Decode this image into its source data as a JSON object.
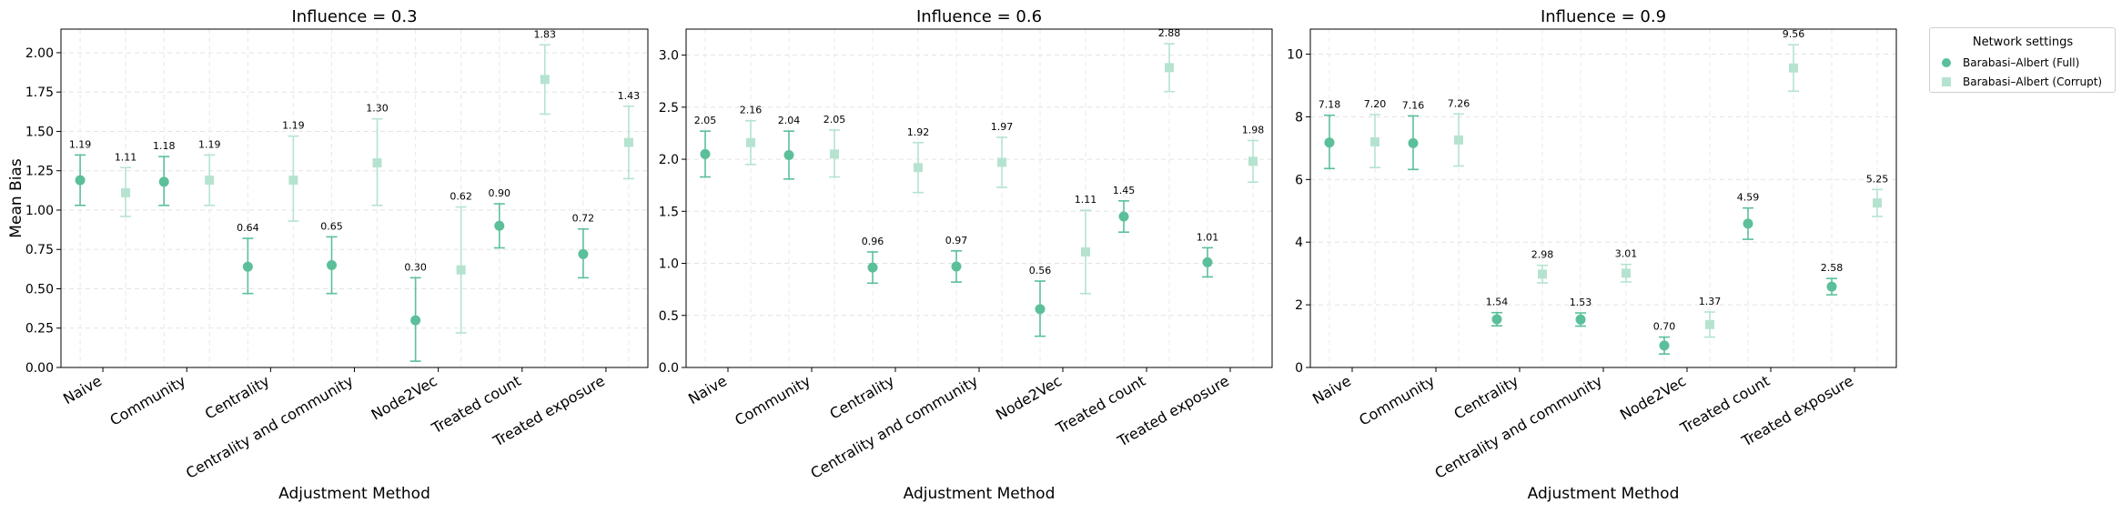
{
  "figure": {
    "shared_ylabel": "Mean Bias",
    "legend": {
      "title": "Network settings",
      "entries": [
        {
          "label": "Barabasi–Albert (Full)",
          "color": "#5bbf9a",
          "marker": "circle"
        },
        {
          "label": "Barabasi–Albert (Corrupt)",
          "color": "#b5e3d0",
          "marker": "square"
        }
      ]
    }
  },
  "chart_data": [
    {
      "type": "scatter",
      "title": "Influence = 0.3",
      "xlabel": "Adjustment Method",
      "ylabel": "Mean Bias",
      "categories": [
        "Naive",
        "Community",
        "Centrality",
        "Centrality and community",
        "Node2Vec",
        "Treated count",
        "Treated exposure"
      ],
      "ylim": [
        0,
        2.15
      ],
      "yticks": [
        "0.00",
        "0.25",
        "0.50",
        "0.75",
        "1.00",
        "1.25",
        "1.50",
        "1.75",
        "2.00"
      ],
      "grid": true,
      "series": [
        {
          "name": "Barabasi–Albert (Full)",
          "values": [
            1.19,
            1.18,
            0.64,
            0.65,
            0.3,
            0.9,
            0.72
          ],
          "labels": [
            "1.19",
            "1.18",
            "0.64",
            "0.65",
            "0.30",
            "0.90",
            "0.72"
          ],
          "err_low": [
            1.03,
            1.03,
            0.47,
            0.47,
            0.04,
            0.76,
            0.57
          ],
          "err_high": [
            1.35,
            1.34,
            0.82,
            0.83,
            0.57,
            1.04,
            0.88
          ]
        },
        {
          "name": "Barabasi–Albert (Corrupt)",
          "values": [
            1.11,
            1.19,
            1.19,
            1.3,
            0.62,
            1.83,
            1.43
          ],
          "labels": [
            "1.11",
            "1.19",
            "1.19",
            "1.30",
            "0.62",
            "1.83",
            "1.43"
          ],
          "err_low": [
            0.96,
            1.03,
            0.93,
            1.03,
            0.22,
            1.61,
            1.2
          ],
          "err_high": [
            1.27,
            1.35,
            1.47,
            1.58,
            1.02,
            2.05,
            1.66
          ]
        }
      ]
    },
    {
      "type": "scatter",
      "title": "Influence = 0.6",
      "xlabel": "Adjustment Method",
      "ylabel": "",
      "categories": [
        "Naive",
        "Community",
        "Centrality",
        "Centrality and community",
        "Node2Vec",
        "Treated count",
        "Treated exposure"
      ],
      "ylim": [
        0,
        3.25
      ],
      "yticks": [
        "0.0",
        "0.5",
        "1.0",
        "1.5",
        "2.0",
        "2.5",
        "3.0"
      ],
      "grid": true,
      "series": [
        {
          "name": "Barabasi–Albert (Full)",
          "values": [
            2.05,
            2.04,
            0.96,
            0.97,
            0.56,
            1.45,
            1.01
          ],
          "labels": [
            "2.05",
            "2.04",
            "0.96",
            "0.97",
            "0.56",
            "1.45",
            "1.01"
          ],
          "err_low": [
            1.83,
            1.81,
            0.81,
            0.82,
            0.3,
            1.3,
            0.87
          ],
          "err_high": [
            2.27,
            2.27,
            1.11,
            1.12,
            0.83,
            1.6,
            1.15
          ]
        },
        {
          "name": "Barabasi–Albert (Corrupt)",
          "values": [
            2.16,
            2.05,
            1.92,
            1.97,
            1.11,
            2.88,
            1.98
          ],
          "labels": [
            "2.16",
            "2.05",
            "1.92",
            "1.97",
            "1.11",
            "2.88",
            "1.98"
          ],
          "err_low": [
            1.95,
            1.83,
            1.68,
            1.73,
            0.71,
            2.65,
            1.78
          ],
          "err_high": [
            2.37,
            2.28,
            2.16,
            2.21,
            1.51,
            3.11,
            2.18
          ]
        }
      ]
    },
    {
      "type": "scatter",
      "title": "Influence = 0.9",
      "xlabel": "Adjustment Method",
      "ylabel": "",
      "categories": [
        "Naive",
        "Community",
        "Centrality",
        "Centrality and community",
        "Node2Vec",
        "Treated count",
        "Treated exposure"
      ],
      "ylim": [
        0,
        10.8
      ],
      "yticks": [
        "0",
        "2",
        "4",
        "6",
        "8",
        "10"
      ],
      "grid": true,
      "series": [
        {
          "name": "Barabasi–Albert (Full)",
          "values": [
            7.18,
            7.16,
            1.54,
            1.53,
            0.7,
            4.59,
            2.58
          ],
          "labels": [
            "7.18",
            "7.16",
            "1.54",
            "1.53",
            "0.70",
            "4.59",
            "2.58"
          ],
          "err_low": [
            6.35,
            6.32,
            1.33,
            1.32,
            0.43,
            4.09,
            2.32
          ],
          "err_high": [
            8.05,
            8.03,
            1.75,
            1.74,
            0.97,
            5.09,
            2.84
          ]
        },
        {
          "name": "Barabasi–Albert (Corrupt)",
          "values": [
            7.2,
            7.26,
            2.98,
            3.01,
            1.37,
            9.56,
            5.25
          ],
          "labels": [
            "7.20",
            "7.26",
            "2.98",
            "3.01",
            "1.37",
            "9.56",
            "5.25"
          ],
          "err_low": [
            6.38,
            6.43,
            2.7,
            2.73,
            0.97,
            8.82,
            4.82
          ],
          "err_high": [
            8.07,
            8.09,
            3.26,
            3.29,
            1.77,
            10.3,
            5.68
          ]
        }
      ]
    }
  ]
}
